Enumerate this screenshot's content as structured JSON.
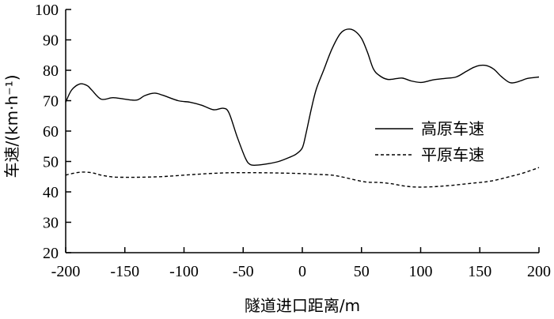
{
  "chart_data": {
    "type": "line",
    "title": "",
    "xlabel": "隧道进口距离/m",
    "ylabel": "车速/(km·h⁻¹)",
    "xlim": [
      -200,
      200
    ],
    "ylim": [
      20,
      100
    ],
    "x_ticks": [
      -200,
      -150,
      -100,
      -50,
      0,
      50,
      100,
      150,
      200
    ],
    "y_ticks": [
      20,
      30,
      40,
      50,
      60,
      70,
      80,
      90,
      100
    ],
    "grid": false,
    "legend_position": "right",
    "series": [
      {
        "name": "高原车速",
        "line_style": "solid",
        "points": [
          [
            -200,
            69.5
          ],
          [
            -195,
            73.5
          ],
          [
            -188,
            75.5
          ],
          [
            -182,
            75
          ],
          [
            -178,
            73.5
          ],
          [
            -170,
            70.5
          ],
          [
            -160,
            71
          ],
          [
            -150,
            70.5
          ],
          [
            -140,
            70.2
          ],
          [
            -133,
            71.7
          ],
          [
            -125,
            72.5
          ],
          [
            -118,
            71.8
          ],
          [
            -105,
            70
          ],
          [
            -95,
            69.5
          ],
          [
            -85,
            68.5
          ],
          [
            -75,
            67
          ],
          [
            -67,
            67.5
          ],
          [
            -62,
            66
          ],
          [
            -55,
            58
          ],
          [
            -48,
            51
          ],
          [
            -44,
            49
          ],
          [
            -38,
            48.8
          ],
          [
            -30,
            49.2
          ],
          [
            -20,
            50
          ],
          [
            -10,
            51.5
          ],
          [
            -5,
            52.5
          ],
          [
            0,
            54.5
          ],
          [
            3,
            59
          ],
          [
            8,
            68
          ],
          [
            12,
            74
          ],
          [
            18,
            80
          ],
          [
            25,
            87
          ],
          [
            32,
            92
          ],
          [
            38,
            93.5
          ],
          [
            44,
            93
          ],
          [
            50,
            90.5
          ],
          [
            55,
            86
          ],
          [
            60,
            80.5
          ],
          [
            65,
            78.3
          ],
          [
            72,
            77
          ],
          [
            80,
            77.3
          ],
          [
            85,
            77.4
          ],
          [
            92,
            76.5
          ],
          [
            100,
            76
          ],
          [
            105,
            76.3
          ],
          [
            110,
            76.8
          ],
          [
            120,
            77.3
          ],
          [
            130,
            77.8
          ],
          [
            138,
            79.5
          ],
          [
            145,
            81
          ],
          [
            150,
            81.6
          ],
          [
            156,
            81.5
          ],
          [
            162,
            80.3
          ],
          [
            168,
            78
          ],
          [
            175,
            76
          ],
          [
            180,
            76
          ],
          [
            185,
            76.6
          ],
          [
            190,
            77.3
          ],
          [
            200,
            77.8
          ]
        ]
      },
      {
        "name": "平原车速",
        "line_style": "dashed",
        "points": [
          [
            -200,
            45.5
          ],
          [
            -195,
            46
          ],
          [
            -187,
            46.5
          ],
          [
            -178,
            46.3
          ],
          [
            -170,
            45.5
          ],
          [
            -160,
            44.9
          ],
          [
            -150,
            44.8
          ],
          [
            -140,
            44.8
          ],
          [
            -120,
            45
          ],
          [
            -100,
            45.5
          ],
          [
            -80,
            46
          ],
          [
            -60,
            46.3
          ],
          [
            -40,
            46.3
          ],
          [
            -20,
            46.2
          ],
          [
            0,
            46
          ],
          [
            10,
            45.8
          ],
          [
            25,
            45.5
          ],
          [
            35,
            44.8
          ],
          [
            45,
            43.9
          ],
          [
            55,
            43.2
          ],
          [
            65,
            43.1
          ],
          [
            75,
            42.7
          ],
          [
            85,
            42
          ],
          [
            95,
            41.6
          ],
          [
            105,
            41.6
          ],
          [
            115,
            41.8
          ],
          [
            125,
            42.1
          ],
          [
            135,
            42.5
          ],
          [
            145,
            42.9
          ],
          [
            155,
            43.3
          ],
          [
            165,
            44
          ],
          [
            175,
            45
          ],
          [
            185,
            46
          ],
          [
            195,
            47.3
          ],
          [
            200,
            48
          ]
        ]
      }
    ]
  }
}
